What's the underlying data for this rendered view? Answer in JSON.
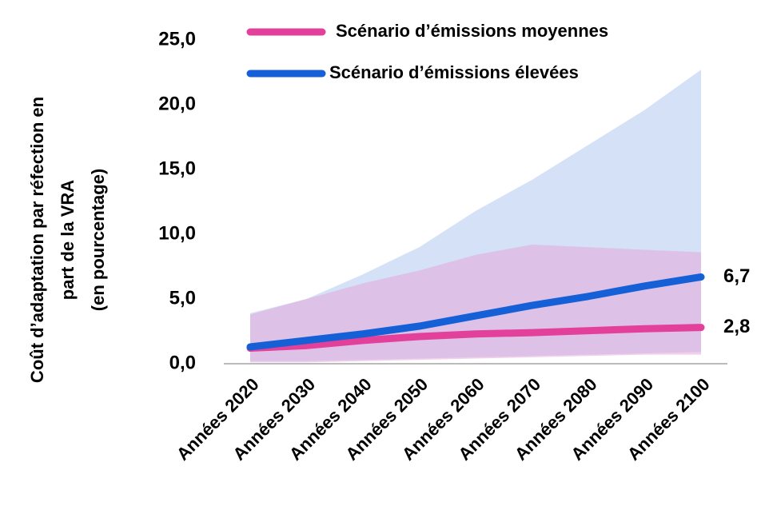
{
  "chart_data": {
    "type": "line",
    "ylabel": [
      "Coût d’adaptation par réfection en",
      "part de la VRA",
      "(en pourcentage)"
    ],
    "categories": [
      "Années 2020",
      "Années 2030",
      "Années 2040",
      "Années 2050",
      "Années 2060",
      "Années 2070",
      "Années 2080",
      "Années 2090",
      "Années 2100"
    ],
    "ylim": [
      0,
      25
    ],
    "yticks": [
      {
        "value": 0,
        "label": "0,0"
      },
      {
        "value": 5,
        "label": "5,0"
      },
      {
        "value": 10,
        "label": "10,0"
      },
      {
        "value": 15,
        "label": "15,0"
      },
      {
        "value": 20,
        "label": "20,0"
      },
      {
        "value": 25,
        "label": "25,0"
      }
    ],
    "bands": [
      {
        "color": "#a9c4f0",
        "upper": [
          3.9,
          5.0,
          6.9,
          9.0,
          11.8,
          14.2,
          16.9,
          19.6,
          22.7
        ],
        "lower": [
          0.2,
          0.2,
          0.3,
          0.4,
          0.5,
          0.6,
          0.7,
          0.8,
          0.9
        ]
      },
      {
        "color": "#e6a2d8",
        "upper": [
          3.8,
          5.0,
          6.2,
          7.2,
          8.4,
          9.2,
          9.0,
          8.8,
          8.6
        ],
        "lower": [
          0.1,
          0.1,
          0.2,
          0.3,
          0.4,
          0.5,
          0.6,
          0.7,
          0.7
        ]
      }
    ],
    "series": [
      {
        "name": "Scénario d’émissions moyennes",
        "color": "#e2409a",
        "values": [
          1.2,
          1.4,
          1.8,
          2.1,
          2.3,
          2.4,
          2.55,
          2.7,
          2.8
        ],
        "value_labels": [
          null,
          null,
          null,
          null,
          null,
          null,
          null,
          null,
          "2,8"
        ]
      },
      {
        "name": "Scénario d’émissions élevées",
        "color": "#1560d6",
        "values": [
          1.3,
          1.8,
          2.3,
          2.9,
          3.7,
          4.5,
          5.2,
          6.0,
          6.7
        ],
        "value_labels": [
          null,
          null,
          null,
          null,
          null,
          null,
          null,
          null,
          "6,7"
        ]
      }
    ]
  }
}
